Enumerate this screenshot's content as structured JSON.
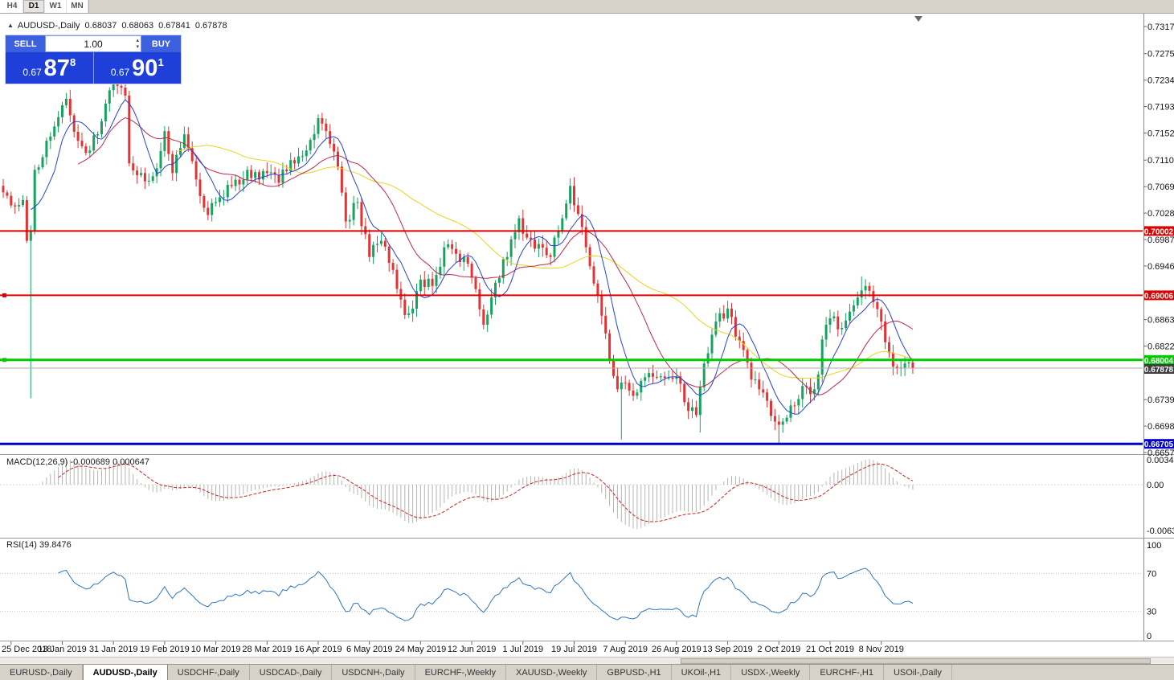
{
  "toolbar": {
    "timeframes": [
      "H4",
      "D1",
      "W1",
      "MN"
    ],
    "active": "D1"
  },
  "icons": {
    "collapse": "▲",
    "vol_up": "▴",
    "vol_down": "▾"
  },
  "chart": {
    "symbol": "AUDUSD-,Daily",
    "open": "0.68037",
    "high": "0.68063",
    "low": "0.67841",
    "close": "0.67878"
  },
  "one_click": {
    "sell_label": "SELL",
    "buy_label": "BUY",
    "volume": "1.00",
    "sell_price_small": "0.67",
    "sell_price_big": "87",
    "sell_price_sup": "8",
    "buy_price_small": "0.67",
    "buy_price_big": "90",
    "buy_price_sup": "1"
  },
  "price_scale": {
    "labels": [
      "0.73170",
      "0.72750",
      "0.72340",
      "0.71930",
      "0.71520",
      "0.71100",
      "0.70690",
      "0.70280",
      "0.69870",
      "0.69460",
      "0.68630",
      "0.68220",
      "0.67390",
      "0.66980",
      "0.66570"
    ]
  },
  "dates": {
    "labels": [
      "25 Dec 2018",
      "13 Jan 2019",
      "31 Jan 2019",
      "19 Feb 2019",
      "10 Mar 2019",
      "28 Mar 2019",
      "16 Apr 2019",
      "6 May 2019",
      "24 May 2019",
      "12 Jun 2019",
      "1 Jul 2019",
      "19 Jul 2019",
      "7 Aug 2019",
      "26 Aug 2019",
      "13 Sep 2019",
      "2 Oct 2019",
      "21 Oct 2019",
      "8 Nov 2019"
    ]
  },
  "macd": {
    "label": "MACD(12,26,9) -0.000689 0.000647",
    "scale": [
      "0.00349",
      "0.00",
      "-0.00637"
    ]
  },
  "rsi": {
    "label": "RSI(14) 39.8476",
    "scale": [
      "100",
      "70",
      "30",
      "0"
    ]
  },
  "tabs": {
    "active": "AUDUSD-,Daily",
    "items": [
      "EURUSD-,Daily",
      "AUDUSD-,Daily",
      "USDCHF-,Daily",
      "USDCAD-,Daily",
      "USDCNH-,Daily",
      "EURCHF-,Weekly",
      "XAUUSD-,Weekly",
      "GBPUSD-,H1",
      "UKOil-,H1",
      "USDX-,Weekly",
      "EURCHF-,H1",
      "USOil-,Daily"
    ],
    "active_index": 1
  },
  "chart_data": {
    "type": "candlestick",
    "symbol": "AUDUSD",
    "timeframe": "Daily",
    "bars": 232,
    "y_axis": {
      "min": 0.6657,
      "max": 0.7317
    },
    "anchors": [
      [
        0,
        0.706
      ],
      [
        2,
        0.704
      ],
      [
        5,
        0.7048
      ],
      [
        6,
        0.6985
      ],
      [
        7,
        0.7
      ],
      [
        8,
        0.7095
      ],
      [
        11,
        0.714
      ],
      [
        15,
        0.7195
      ],
      [
        16,
        0.7205
      ],
      [
        19,
        0.714
      ],
      [
        22,
        0.7125
      ],
      [
        25,
        0.717
      ],
      [
        28,
        0.7235
      ],
      [
        29,
        0.7225
      ],
      [
        31,
        0.721
      ],
      [
        32,
        0.7105
      ],
      [
        35,
        0.709
      ],
      [
        38,
        0.7085
      ],
      [
        41,
        0.7155
      ],
      [
        43,
        0.709
      ],
      [
        46,
        0.715
      ],
      [
        49,
        0.708
      ],
      [
        52,
        0.7025
      ],
      [
        54,
        0.7045
      ],
      [
        58,
        0.707
      ],
      [
        62,
        0.7095
      ],
      [
        65,
        0.708
      ],
      [
        67,
        0.709
      ],
      [
        70,
        0.7075
      ],
      [
        73,
        0.711
      ],
      [
        77,
        0.7125
      ],
      [
        80,
        0.7175
      ],
      [
        82,
        0.7155
      ],
      [
        85,
        0.71
      ],
      [
        87,
        0.7015
      ],
      [
        90,
        0.7045
      ],
      [
        93,
        0.696
      ],
      [
        96,
        0.6985
      ],
      [
        99,
        0.694
      ],
      [
        102,
        0.687
      ],
      [
        104,
        0.688
      ],
      [
        106,
        0.6925
      ],
      [
        109,
        0.6915
      ],
      [
        112,
        0.6975
      ],
      [
        115,
        0.6965
      ],
      [
        117,
        0.696
      ],
      [
        120,
        0.691
      ],
      [
        122,
        0.6855
      ],
      [
        125,
        0.692
      ],
      [
        128,
        0.696
      ],
      [
        131,
        0.702
      ],
      [
        133,
        0.699
      ],
      [
        136,
        0.698
      ],
      [
        139,
        0.696
      ],
      [
        142,
        0.702
      ],
      [
        144,
        0.707
      ],
      [
        145,
        0.704
      ],
      [
        148,
        0.6975
      ],
      [
        151,
        0.69
      ],
      [
        154,
        0.68
      ],
      [
        156,
        0.6755
      ],
      [
        158,
        0.6765
      ],
      [
        161,
        0.675
      ],
      [
        164,
        0.678
      ],
      [
        167,
        0.6775
      ],
      [
        171,
        0.6775
      ],
      [
        173,
        0.6735
      ],
      [
        176,
        0.6715
      ],
      [
        178,
        0.6795
      ],
      [
        181,
        0.686
      ],
      [
        184,
        0.688
      ],
      [
        187,
        0.683
      ],
      [
        190,
        0.677
      ],
      [
        193,
        0.675
      ],
      [
        196,
        0.6705
      ],
      [
        197,
        0.67
      ],
      [
        200,
        0.673
      ],
      [
        203,
        0.676
      ],
      [
        206,
        0.6755
      ],
      [
        209,
        0.6855
      ],
      [
        210,
        0.6865
      ],
      [
        213,
        0.685
      ],
      [
        216,
        0.6885
      ],
      [
        219,
        0.6915
      ],
      [
        221,
        0.689
      ],
      [
        223,
        0.686
      ],
      [
        226,
        0.679
      ],
      [
        229,
        0.6795
      ],
      [
        231,
        0.6788
      ]
    ],
    "spikes": [
      {
        "i": 7,
        "low": 0.6741
      },
      {
        "i": 144,
        "high": 0.7082
      },
      {
        "i": 157,
        "low": 0.6677
      },
      {
        "i": 177,
        "low": 0.6688
      },
      {
        "i": 197,
        "low": 0.6671
      },
      {
        "i": 218,
        "high": 0.693
      }
    ],
    "levels": [
      {
        "price": 0.70002,
        "label": "0.70002",
        "color": "#dd0000",
        "width": 2,
        "handle": false
      },
      {
        "price": 0.69006,
        "label": "0.69006",
        "color": "#dd0000",
        "width": 2,
        "handle": true
      },
      {
        "price": 0.68004,
        "label": "0.68004",
        "color": "#00cc00",
        "width": 3,
        "handle": true
      },
      {
        "price": 0.66705,
        "label": "0.66705",
        "color": "#0000cc",
        "width": 3,
        "handle": false
      }
    ],
    "current": {
      "price": 0.67878,
      "label": "0.67878",
      "color": "#3f3f3f"
    },
    "moving_averages": [
      {
        "period": 45,
        "color": "#e8d41e"
      },
      {
        "period": 20,
        "color": "#c02848"
      },
      {
        "period": 8,
        "color": "#2742d8"
      }
    ],
    "candle_colors": {
      "up": "#17a35f",
      "down": "#e23434"
    },
    "macd": {
      "fast": 12,
      "slow": 26,
      "signal": 9,
      "histogram_color": "#b4b4b4",
      "signal_color": "#d02020"
    },
    "rsi": {
      "period": 14,
      "color": "#2f74c0",
      "levels": [
        30,
        70
      ]
    },
    "date_ticks": {
      "first_index": 2,
      "step": 13
    }
  }
}
